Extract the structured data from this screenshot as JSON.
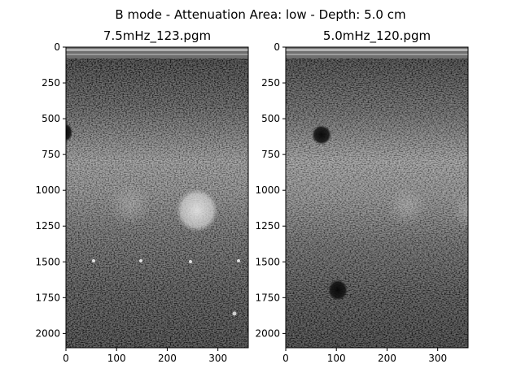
{
  "suptitle": "B mode - Attenuation Area: low - Depth: 5.0 cm",
  "panels": [
    {
      "title": "7.5mHz_123.pgm",
      "x_ticks": [
        "0",
        "100",
        "200",
        "300"
      ],
      "y_ticks": [
        "0",
        "250",
        "500",
        "750",
        "1000",
        "1250",
        "1500",
        "1750",
        "2000"
      ],
      "x_range": [
        0,
        360
      ],
      "y_range": [
        0,
        2100
      ]
    },
    {
      "title": "5.0mHz_120.pgm",
      "x_ticks": [
        "0",
        "100",
        "200",
        "300"
      ],
      "y_ticks": [
        "0",
        "250",
        "500",
        "750",
        "1000",
        "1250",
        "1500",
        "1750",
        "2000"
      ],
      "x_range": [
        0,
        360
      ],
      "y_range": [
        0,
        2100
      ]
    }
  ]
}
